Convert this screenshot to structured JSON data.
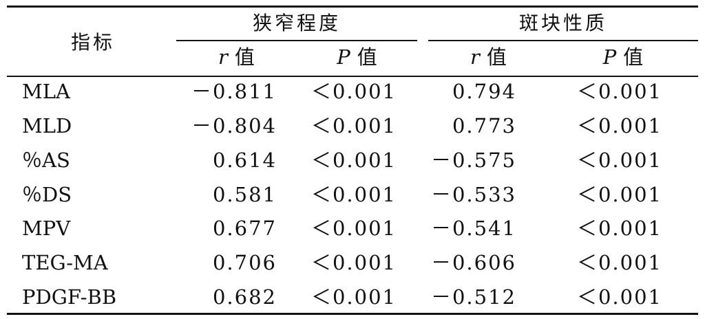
{
  "table": {
    "corner_header": "指标",
    "groups": [
      {
        "label": "狭窄程度",
        "sub": [
          {
            "symbol": "r",
            "suffix": "值"
          },
          {
            "symbol": "P",
            "suffix": "值"
          }
        ]
      },
      {
        "label": "斑块性质",
        "sub": [
          {
            "symbol": "r",
            "suffix": "值"
          },
          {
            "symbol": "P",
            "suffix": "值"
          }
        ]
      }
    ],
    "rows": [
      {
        "name": "MLA",
        "r1": "－0.811",
        "p1": "＜0.001",
        "r2": "0.794",
        "p2": "＜0.001"
      },
      {
        "name": "MLD",
        "r1": "－0.804",
        "p1": "＜0.001",
        "r2": "0.773",
        "p2": "＜0.001"
      },
      {
        "name": "％AS",
        "r1": "0.614",
        "p1": "＜0.001",
        "r2": "－0.575",
        "p2": "＜0.001"
      },
      {
        "name": "％DS",
        "r1": "0.581",
        "p1": "＜0.001",
        "r2": "－0.533",
        "p2": "＜0.001"
      },
      {
        "name": "MPV",
        "r1": "0.677",
        "p1": "＜0.001",
        "r2": "－0.541",
        "p2": "＜0.001"
      },
      {
        "name": "TEG-MA",
        "r1": "0.706",
        "p1": "＜0.001",
        "r2": "－0.606",
        "p2": "＜0.001"
      },
      {
        "name": "PDGF-BB",
        "r1": "0.682",
        "p1": "＜0.001",
        "r2": "－0.512",
        "p2": "＜0.001"
      }
    ]
  }
}
